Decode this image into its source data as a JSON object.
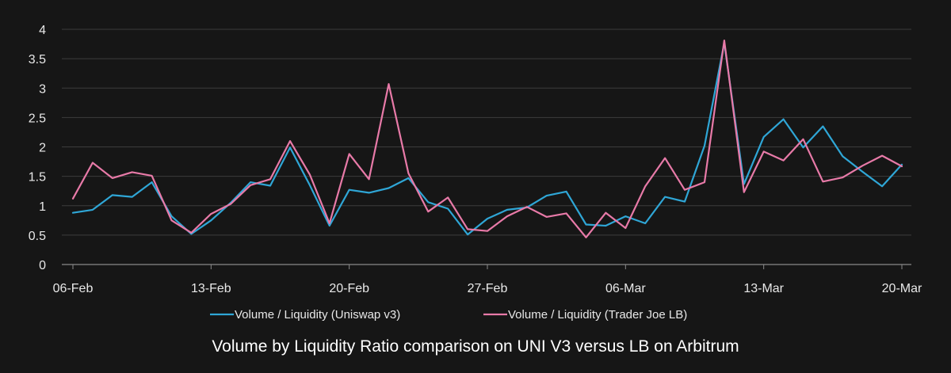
{
  "caption": "Volume by Liquidity Ratio comparison on UNI V3 versus LB on Arbitrum",
  "chart_data": {
    "type": "line",
    "title": "Volume by Liquidity Ratio comparison on UNI V3 versus LB on Arbitrum",
    "xlabel": "",
    "ylabel": "",
    "ylim": [
      0,
      4
    ],
    "yticks": [
      "0",
      "0.5",
      "1",
      "1.5",
      "2",
      "2.5",
      "3",
      "3.5",
      "4"
    ],
    "grid": true,
    "legend_position": "bottom",
    "x_tick_labels": [
      "06-Feb",
      "13-Feb",
      "20-Feb",
      "27-Feb",
      "06-Mar",
      "13-Mar",
      "20-Mar"
    ],
    "x_tick_indices": [
      0,
      7,
      14,
      21,
      28,
      35,
      42
    ],
    "num_points": 43,
    "series": [
      {
        "name": "Volume / Liquidity (Uniswap v3)",
        "color": "#2fa6d6",
        "values": [
          0.88,
          0.93,
          1.18,
          1.15,
          1.4,
          0.82,
          0.52,
          0.75,
          1.05,
          1.4,
          1.34,
          1.99,
          1.35,
          0.66,
          1.27,
          1.22,
          1.3,
          1.47,
          1.06,
          0.95,
          0.51,
          0.78,
          0.93,
          0.97,
          1.17,
          1.24,
          0.68,
          0.66,
          0.82,
          0.7,
          1.15,
          1.07,
          2.02,
          3.77,
          1.37,
          2.17,
          2.47,
          1.99,
          2.35,
          1.84,
          1.58,
          1.33,
          1.7
        ]
      },
      {
        "name": "Volume / Liquidity (Trader Joe LB)",
        "color": "#e87aa8",
        "values": [
          1.12,
          1.73,
          1.47,
          1.57,
          1.51,
          0.75,
          0.54,
          0.86,
          1.03,
          1.35,
          1.45,
          2.1,
          1.53,
          0.7,
          1.88,
          1.45,
          3.07,
          1.55,
          0.9,
          1.14,
          0.6,
          0.57,
          0.82,
          0.98,
          0.81,
          0.87,
          0.46,
          0.88,
          0.62,
          1.33,
          1.81,
          1.27,
          1.4,
          3.81,
          1.23,
          1.92,
          1.77,
          2.13,
          1.41,
          1.48,
          1.68,
          1.85,
          1.67
        ]
      }
    ]
  }
}
